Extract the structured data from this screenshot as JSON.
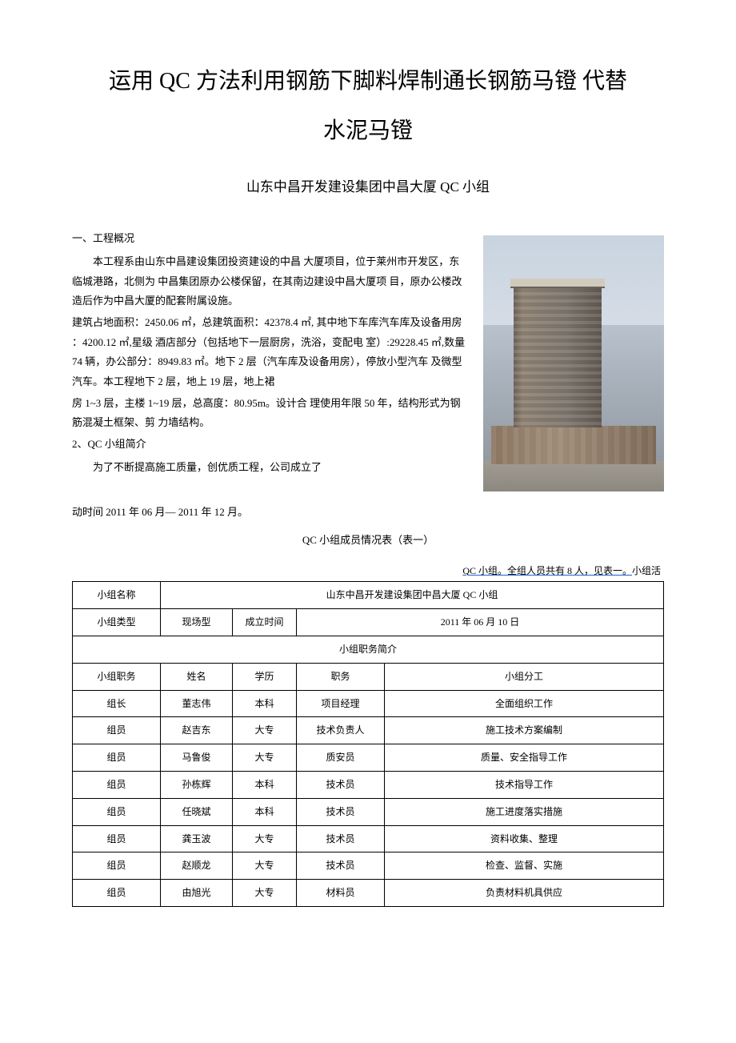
{
  "title": {
    "line1": "运用 QC 方法利用钢筋下脚料焊制通长钢筋马镫 代替",
    "line2": "水泥马镫"
  },
  "subtitle": "山东中昌开发建设集团中昌大厦 QC 小组",
  "section1_head": "一、工程概况",
  "para1": "本工程系由山东中昌建设集团投资建设的中昌 大厦项目，位于莱州市开发区，东临城港路，北侧为 中昌集团原办公楼保留，在其南边建设中昌大厦项 目，原办公楼改造后作为中昌大厦的配套附属设施。",
  "para2": "建筑占地面积：2450.06 ㎡，总建筑面积：42378.4 ㎡, 其中地下车库汽车库及设备用房 ：4200.12 ㎡,星级 酒店部分（包括地下一层厨房，洗浴，变配电 室）:29228.45 ㎡,数量 74 辆，办公部分：8949.83 ㎡。地下 2 层（汽车库及设备用房），停放小型汽车 及微型汽车。本工程地下 2 层，地上 19 层，地上裙",
  "para3": "房 1~3 层，主楼 1~19 层，总高度：80.95m。设计合 理使用年限 50 年，结构形式为钢筋混凝土框架、剪 力墙结构。",
  "section2_head": "2、QC 小组简介",
  "para4": "为了不断提高施工质量，创优质工程，公司成立了",
  "para5": "动时间 2011 年 06 月— 2011 年 12 月。",
  "table_caption": "QC 小组成员情况表（表一）",
  "note_underline": "QC 小组。全组人员共有 8 人，见表一。",
  "note_tail": "小组活",
  "image": {
    "alt": "building-rendering",
    "sky_gradient_top": "#c8d4e0",
    "sky_gradient_bottom": "#d5dce5",
    "tower_color": "#787068",
    "base_color": "#9e8a76"
  },
  "table": {
    "row1_label": "小组名称",
    "row1_value": "山东中昌开发建设集团中昌大厦 QC 小组",
    "row2_c1": "小组类型",
    "row2_c2": "现场型",
    "row2_c3": "成立时间",
    "row2_c4": "2011 年 06 月 10 日",
    "row3": "小组职务简介",
    "header": {
      "c1": "小组职务",
      "c2": "姓名",
      "c3": "学历",
      "c4": "职务",
      "c5": "小组分工"
    },
    "rows": [
      {
        "role": "组长",
        "name": "董志伟",
        "edu": "本科",
        "pos": "项目经理",
        "work": "全面组织工作"
      },
      {
        "role": "组员",
        "name": "赵吉东",
        "edu": "大专",
        "pos": "技术负责人",
        "work": "施工技术方案编制"
      },
      {
        "role": "组员",
        "name": "马鲁俊",
        "edu": "大专",
        "pos": "质安员",
        "work": "质量、安全指导工作"
      },
      {
        "role": "组员",
        "name": "孙栋辉",
        "edu": "本科",
        "pos": "技术员",
        "work": "技术指导工作"
      },
      {
        "role": "组员",
        "name": "任晓斌",
        "edu": "本科",
        "pos": "技术员",
        "work": "施工进度落实措施"
      },
      {
        "role": "组员",
        "name": "龚玉波",
        "edu": "大专",
        "pos": "技术员",
        "work": "资料收集、整理"
      },
      {
        "role": "组员",
        "name": "赵顺龙",
        "edu": "大专",
        "pos": "技术员",
        "work": "检查、监督、实施"
      },
      {
        "role": "组员",
        "name": "由旭光",
        "edu": "大专",
        "pos": "材料员",
        "work": "负责材料机具供应"
      }
    ]
  },
  "styling": {
    "page_bg": "#ffffff",
    "text_color": "#000000",
    "border_color": "#000000",
    "link_underline_color": "#1a62d6",
    "title_fontsize": 28,
    "subtitle_fontsize": 17,
    "body_fontsize": 13,
    "table_fontsize": 12
  }
}
